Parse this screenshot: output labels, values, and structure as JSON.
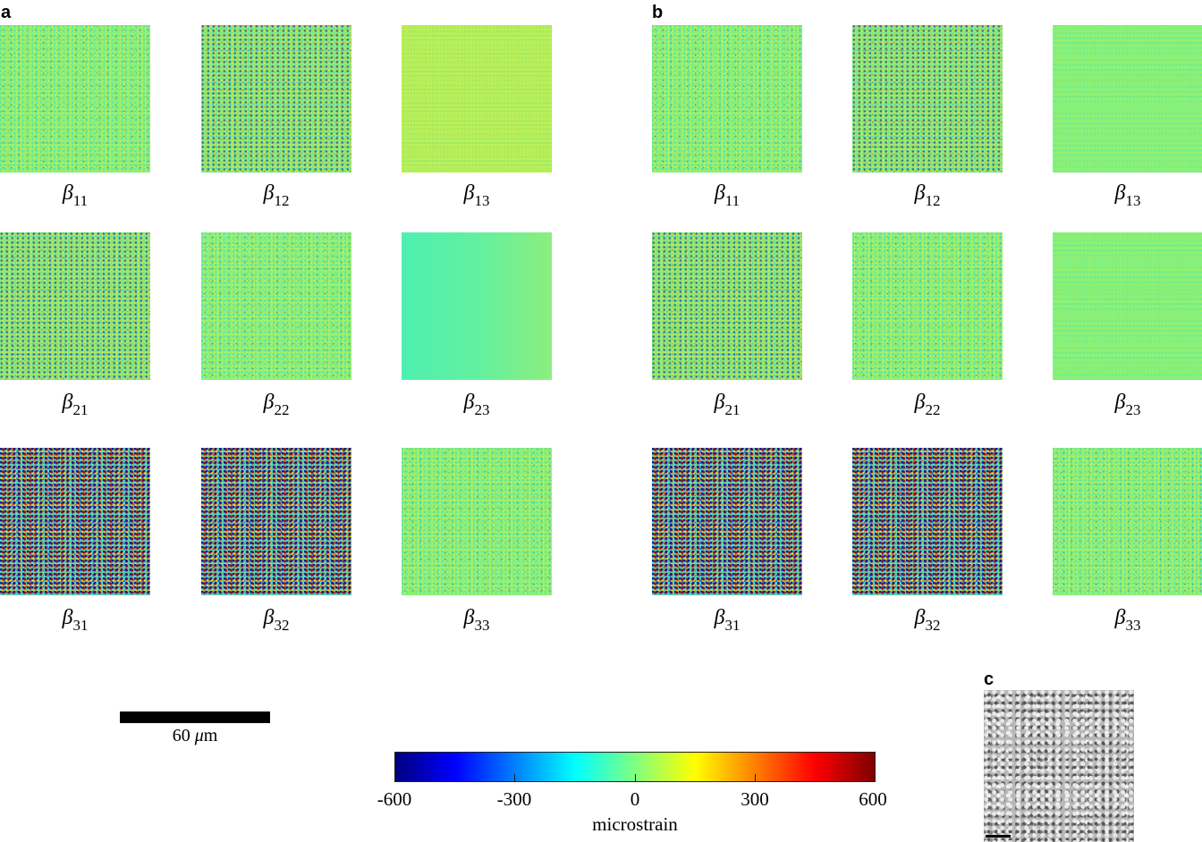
{
  "figure": {
    "panels": [
      {
        "letter": "a",
        "maps": [
          {
            "sub": "11",
            "symbol": "β",
            "texture": "lowvar"
          },
          {
            "sub": "12",
            "symbol": "β",
            "texture": "medvar"
          },
          {
            "sub": "13",
            "symbol": "β",
            "texture": "smooth-yellow"
          },
          {
            "sub": "21",
            "symbol": "β",
            "texture": "medvar"
          },
          {
            "sub": "22",
            "symbol": "β",
            "texture": "lowvar"
          },
          {
            "sub": "23",
            "symbol": "β",
            "texture": "smooth-cyan"
          },
          {
            "sub": "31",
            "symbol": "β",
            "texture": "highvar"
          },
          {
            "sub": "32",
            "symbol": "β",
            "texture": "highvar"
          },
          {
            "sub": "33",
            "symbol": "β",
            "texture": "lowvar"
          }
        ]
      },
      {
        "letter": "b",
        "maps": [
          {
            "sub": "11",
            "symbol": "β",
            "texture": "lowvar"
          },
          {
            "sub": "12",
            "symbol": "β",
            "texture": "medvar"
          },
          {
            "sub": "13",
            "symbol": "β",
            "texture": "smooth-green"
          },
          {
            "sub": "21",
            "symbol": "β",
            "texture": "medvar"
          },
          {
            "sub": "22",
            "symbol": "β",
            "texture": "lowvar"
          },
          {
            "sub": "23",
            "symbol": "β",
            "texture": "smooth-green"
          },
          {
            "sub": "31",
            "symbol": "β",
            "texture": "highvar"
          },
          {
            "sub": "32",
            "symbol": "β",
            "texture": "highvar"
          },
          {
            "sub": "33",
            "symbol": "β",
            "texture": "lowvar"
          }
        ]
      },
      {
        "letter": "c"
      }
    ],
    "scalebar": {
      "value": "60",
      "unit_symbol": "μ",
      "unit_rest": "m"
    },
    "colorbar": {
      "ticks": [
        "-600",
        "-300",
        "0",
        "300",
        "600"
      ],
      "title": "microstrain",
      "min": -600,
      "max": 600,
      "colormap": "jet"
    }
  },
  "chart_data": {
    "type": "heatmap",
    "title": "",
    "panels": [
      "a",
      "b",
      "c"
    ],
    "components": [
      "β11",
      "β12",
      "β13",
      "β21",
      "β22",
      "β23",
      "β31",
      "β32",
      "β33"
    ],
    "colorbar": {
      "label": "microstrain",
      "range": [
        -600,
        600
      ],
      "ticks": [
        -600,
        -300,
        0,
        300,
        600
      ],
      "colormap": "jet"
    },
    "scalebar": "60 μm",
    "notes": "Panels a and b: 3x3 grids of elastic distortion component maps; β31 and β32 show the largest variance. Panel c: grayscale micrograph."
  }
}
